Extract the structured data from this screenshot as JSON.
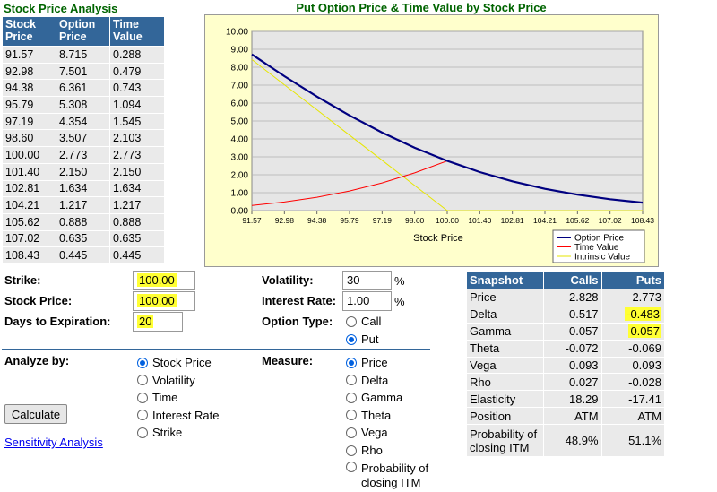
{
  "analysis": {
    "title": "Stock Price Analysis",
    "headers": [
      "Stock Price",
      "Option Price",
      "Time Value"
    ],
    "rows": [
      [
        "91.57",
        "8.715",
        "0.288"
      ],
      [
        "92.98",
        "7.501",
        "0.479"
      ],
      [
        "94.38",
        "6.361",
        "0.743"
      ],
      [
        "95.79",
        "5.308",
        "1.094"
      ],
      [
        "97.19",
        "4.354",
        "1.545"
      ],
      [
        "98.60",
        "3.507",
        "2.103"
      ],
      [
        "100.00",
        "2.773",
        "2.773"
      ],
      [
        "101.40",
        "2.150",
        "2.150"
      ],
      [
        "102.81",
        "1.634",
        "1.634"
      ],
      [
        "104.21",
        "1.217",
        "1.217"
      ],
      [
        "105.62",
        "0.888",
        "0.888"
      ],
      [
        "107.02",
        "0.635",
        "0.635"
      ],
      [
        "108.43",
        "0.445",
        "0.445"
      ]
    ]
  },
  "chart_data": {
    "type": "line",
    "title": "Put Option Price & Time Value by Stock Price",
    "xlabel": "Stock Price",
    "ylabel": "",
    "x": [
      "91.57",
      "92.98",
      "94.38",
      "95.79",
      "97.19",
      "98.60",
      "100.00",
      "101.40",
      "102.81",
      "104.21",
      "105.62",
      "107.02",
      "108.43"
    ],
    "ylim": [
      0,
      10
    ],
    "yticks": [
      "0.00",
      "1.00",
      "2.00",
      "3.00",
      "4.00",
      "5.00",
      "6.00",
      "7.00",
      "8.00",
      "9.00",
      "10.00"
    ],
    "grid": true,
    "legend": "bottom-right",
    "series": [
      {
        "name": "Option Price",
        "color": "#000080",
        "values": [
          8.715,
          7.501,
          6.361,
          5.308,
          4.354,
          3.507,
          2.773,
          2.15,
          1.634,
          1.217,
          0.888,
          0.635,
          0.445
        ]
      },
      {
        "name": "Time Value",
        "color": "#ff0000",
        "values": [
          0.288,
          0.479,
          0.743,
          1.094,
          1.545,
          2.103,
          2.773,
          2.15,
          1.634,
          1.217,
          0.888,
          0.635,
          0.445
        ]
      },
      {
        "name": "Intrinsic Value",
        "color": "#e6e600",
        "values": [
          8.43,
          7.02,
          5.62,
          4.21,
          2.81,
          1.4,
          0,
          0,
          0,
          0,
          0,
          0,
          0
        ]
      }
    ]
  },
  "inputs": {
    "strike_label": "Strike:",
    "strike_value": "100.00",
    "stock_price_label": "Stock Price:",
    "stock_price_value": "100.00",
    "days_label": "Days to Expiration:",
    "days_value": "20",
    "volatility_label": "Volatility:",
    "volatility_value": "30",
    "volatility_unit": "%",
    "interest_label": "Interest Rate:",
    "interest_value": "1.00",
    "interest_unit": "%",
    "option_type_label": "Option Type:",
    "option_types": [
      "Call",
      "Put"
    ],
    "option_type_selected": "Put"
  },
  "analyze": {
    "label": "Analyze by:",
    "options": [
      "Stock Price",
      "Volatility",
      "Time",
      "Interest Rate",
      "Strike"
    ],
    "selected": "Stock Price"
  },
  "measure": {
    "label": "Measure:",
    "options": [
      "Price",
      "Delta",
      "Gamma",
      "Theta",
      "Vega",
      "Rho",
      "Probability of closing ITM"
    ],
    "selected": "Price"
  },
  "calculate_label": "Calculate",
  "sensitivity_link": "Sensitivity Analysis",
  "snapshot": {
    "headers": [
      "Snapshot",
      "Calls",
      "Puts"
    ],
    "rows": [
      [
        "Price",
        "2.828",
        "2.773"
      ],
      [
        "Delta",
        "0.517",
        "-0.483"
      ],
      [
        "Gamma",
        "0.057",
        "0.057"
      ],
      [
        "Theta",
        "-0.072",
        "-0.069"
      ],
      [
        "Vega",
        "0.093",
        "0.093"
      ],
      [
        "Rho",
        "0.027",
        "-0.028"
      ],
      [
        "Elasticity",
        "18.29",
        "-17.41"
      ],
      [
        "Position",
        "ATM",
        "ATM"
      ],
      [
        "Probability of closing ITM",
        "48.9%",
        "51.1%"
      ]
    ]
  }
}
